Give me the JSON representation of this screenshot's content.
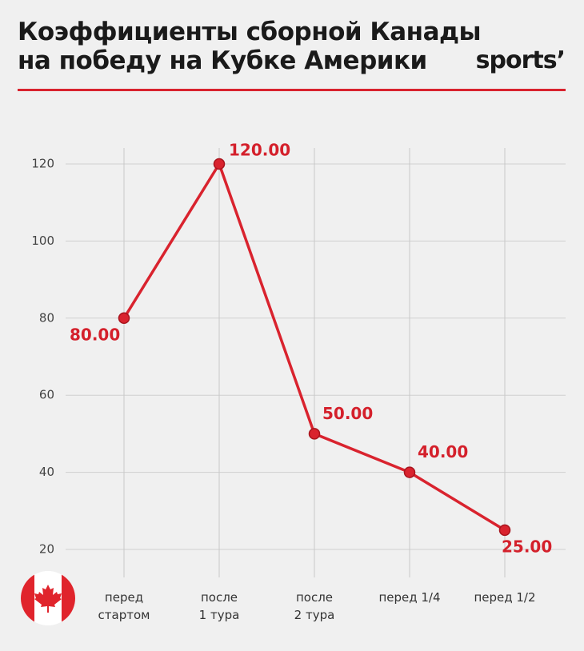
{
  "chart_data": {
    "type": "line",
    "title": "Коэффициенты сборной Канады на победу на Кубке Америки",
    "logo": "sports’",
    "categories": [
      "перед\nстартом",
      "после\n1 тура",
      "после\n2 тура",
      "перед 1/4",
      "перед 1/2"
    ],
    "series": [
      {
        "color": "#d9232e",
        "values": [
          80,
          120,
          50,
          40,
          25
        ],
        "value_labels": [
          "80.00",
          "120.00",
          "50.00",
          "40.00",
          "25.00"
        ]
      }
    ],
    "ylim": [
      20,
      120
    ],
    "yticks": [
      20,
      40,
      60,
      80,
      100,
      120
    ],
    "grid": true
  }
}
